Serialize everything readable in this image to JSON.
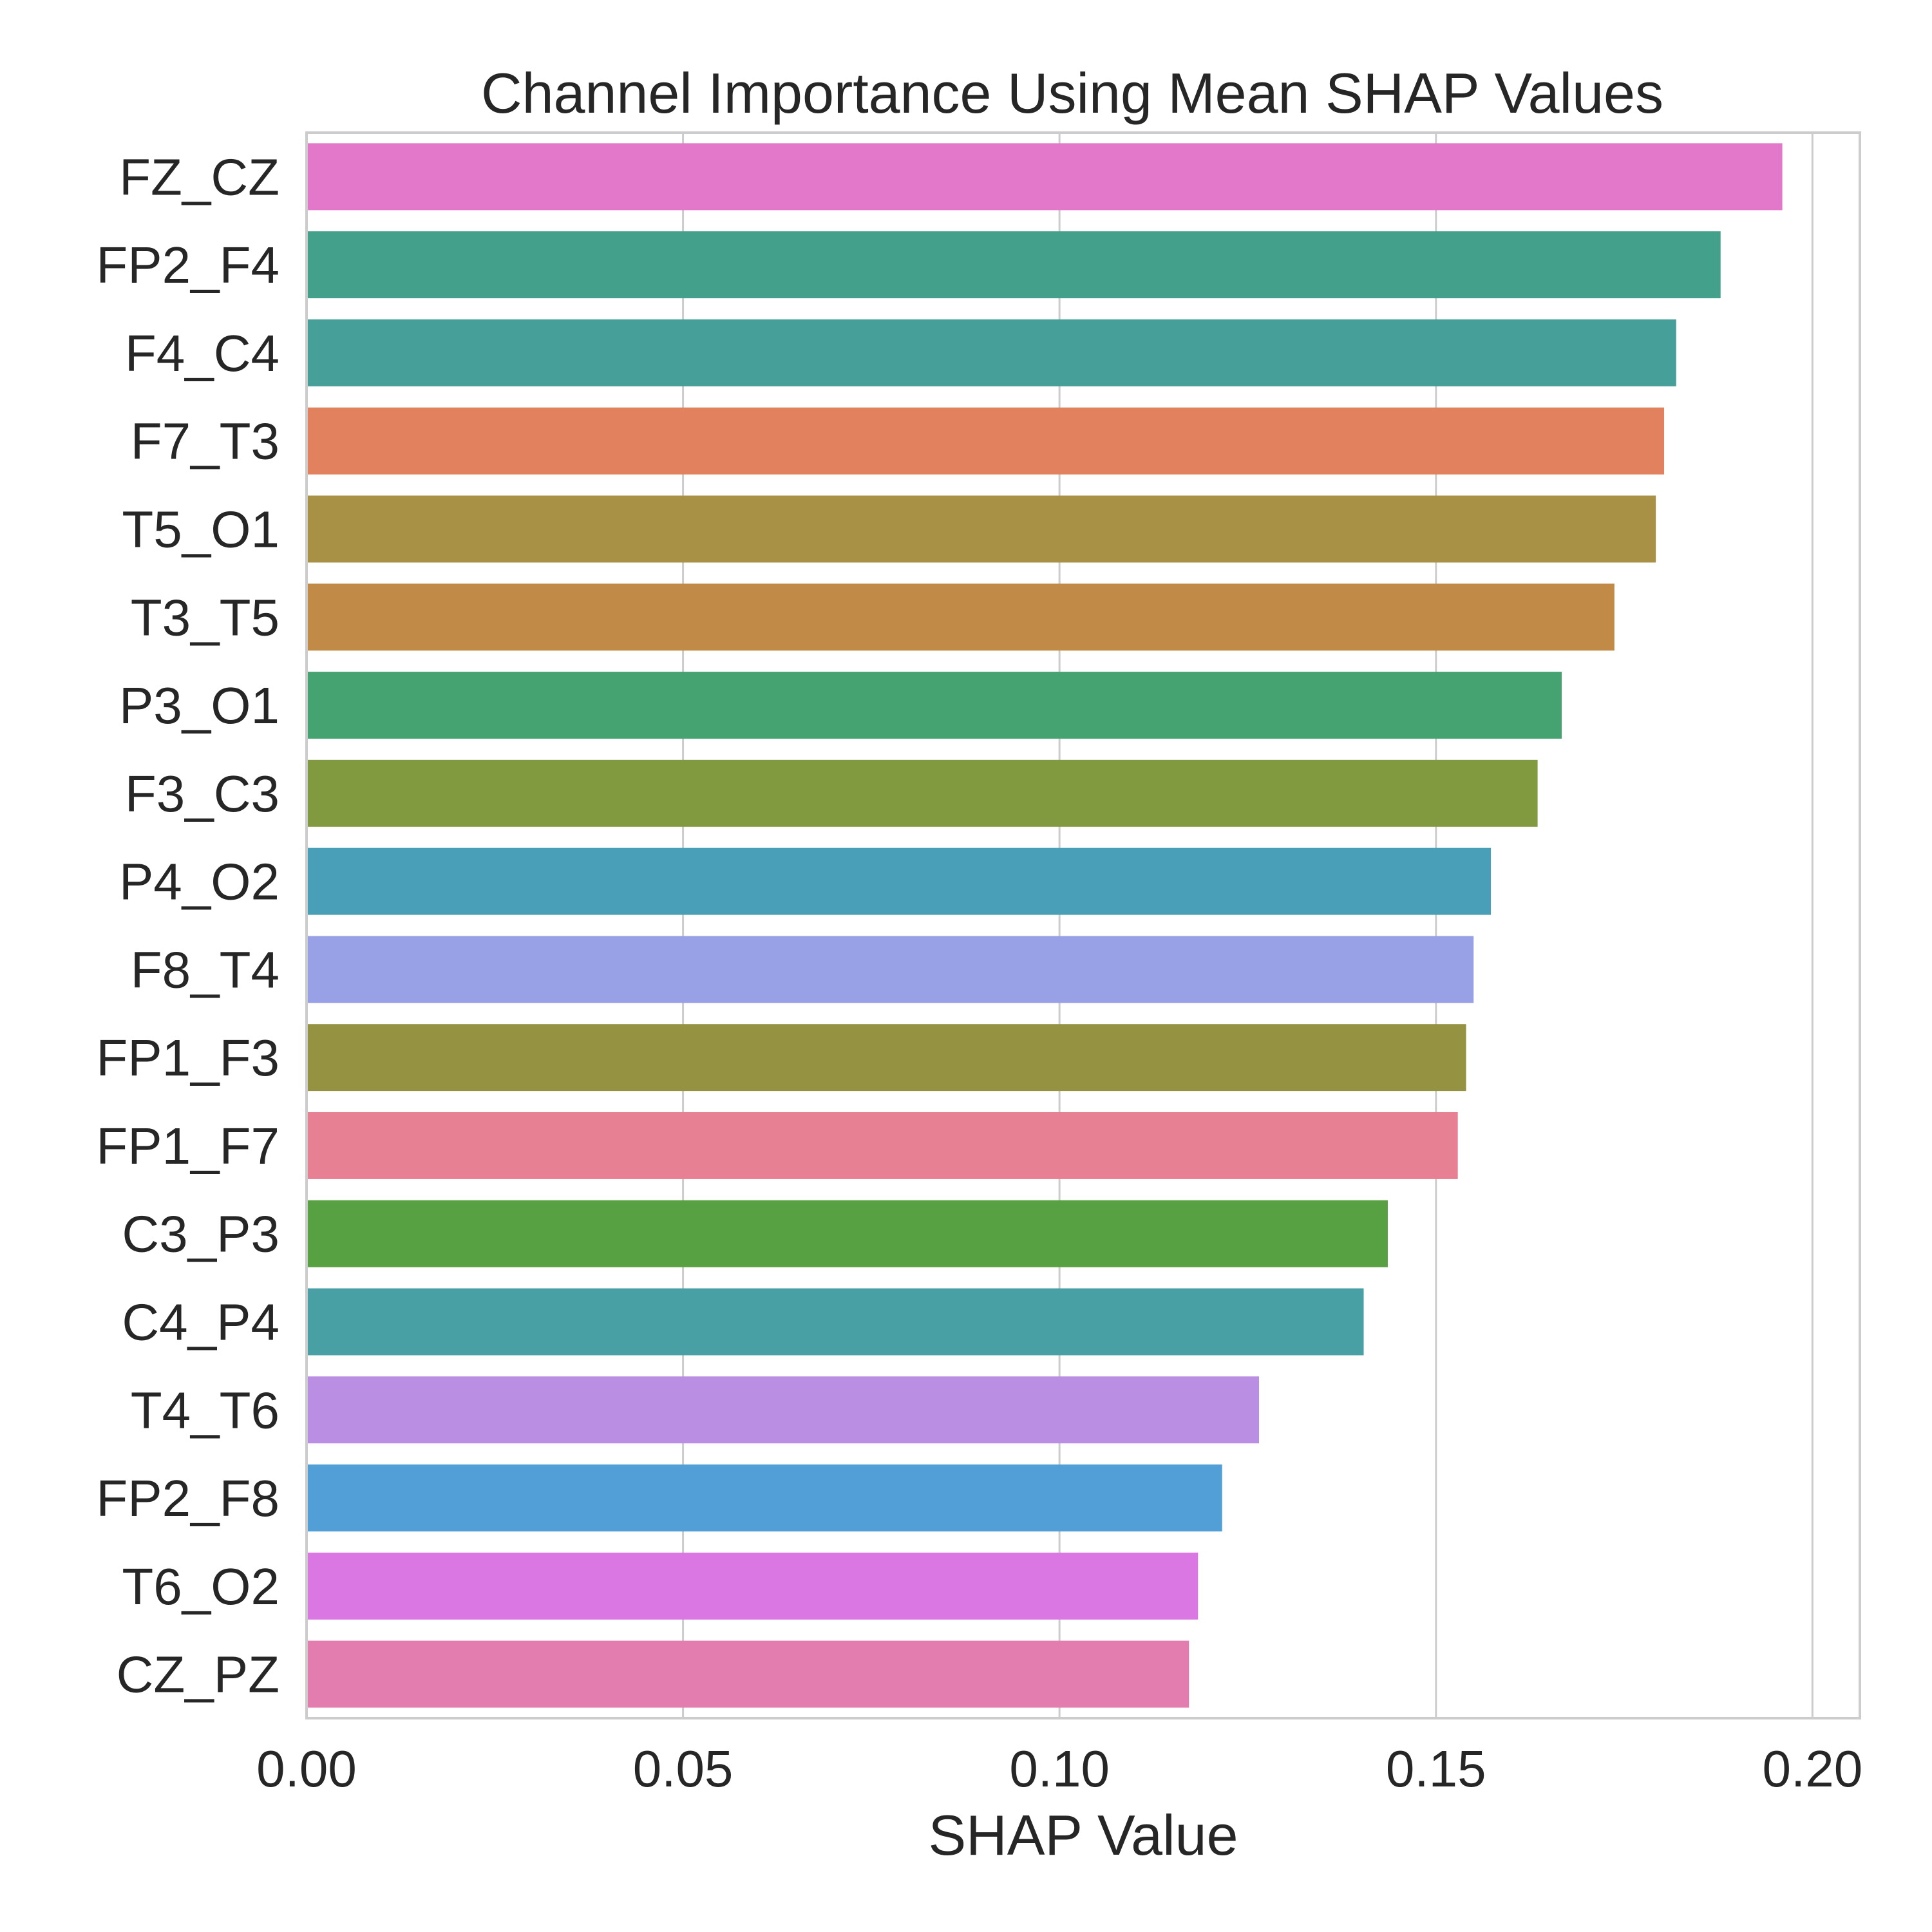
{
  "chart_data": {
    "type": "bar",
    "orientation": "horizontal",
    "title": "Channel Importance Using Mean SHAP Values",
    "xlabel": "SHAP Value",
    "ylabel": "",
    "xlim": [
      0,
      0.2063
    ],
    "xticks": [
      "0.00",
      "0.05",
      "0.10",
      "0.15",
      "0.20"
    ],
    "grid": "x-axis vertical lines on",
    "categories": [
      "FZ_CZ",
      "FP2_F4",
      "F4_C4",
      "F7_T3",
      "T5_O1",
      "T3_T5",
      "P3_O1",
      "F3_C3",
      "P4_O2",
      "F8_T4",
      "FP1_F3",
      "FP1_F7",
      "C3_P3",
      "C4_P4",
      "T4_T6",
      "FP2_F8",
      "T6_O2",
      "CZ_PZ"
    ],
    "values": [
      0.196,
      0.1878,
      0.1819,
      0.1803,
      0.1792,
      0.1737,
      0.1667,
      0.1635,
      0.1573,
      0.155,
      0.154,
      0.1529,
      0.1436,
      0.1404,
      0.1265,
      0.1216,
      0.1184,
      0.1172
    ],
    "colors": [
      "#e377c9",
      "#43a08a",
      "#479f99",
      "#e1815d",
      "#a89144",
      "#c18a47",
      "#45a271",
      "#819a40",
      "#4a9fb8",
      "#98a1e6",
      "#959341",
      "#e88093",
      "#57a143",
      "#49a0a4",
      "#ba8fe3",
      "#529fd8",
      "#da77e2",
      "#e37daf"
    ]
  }
}
